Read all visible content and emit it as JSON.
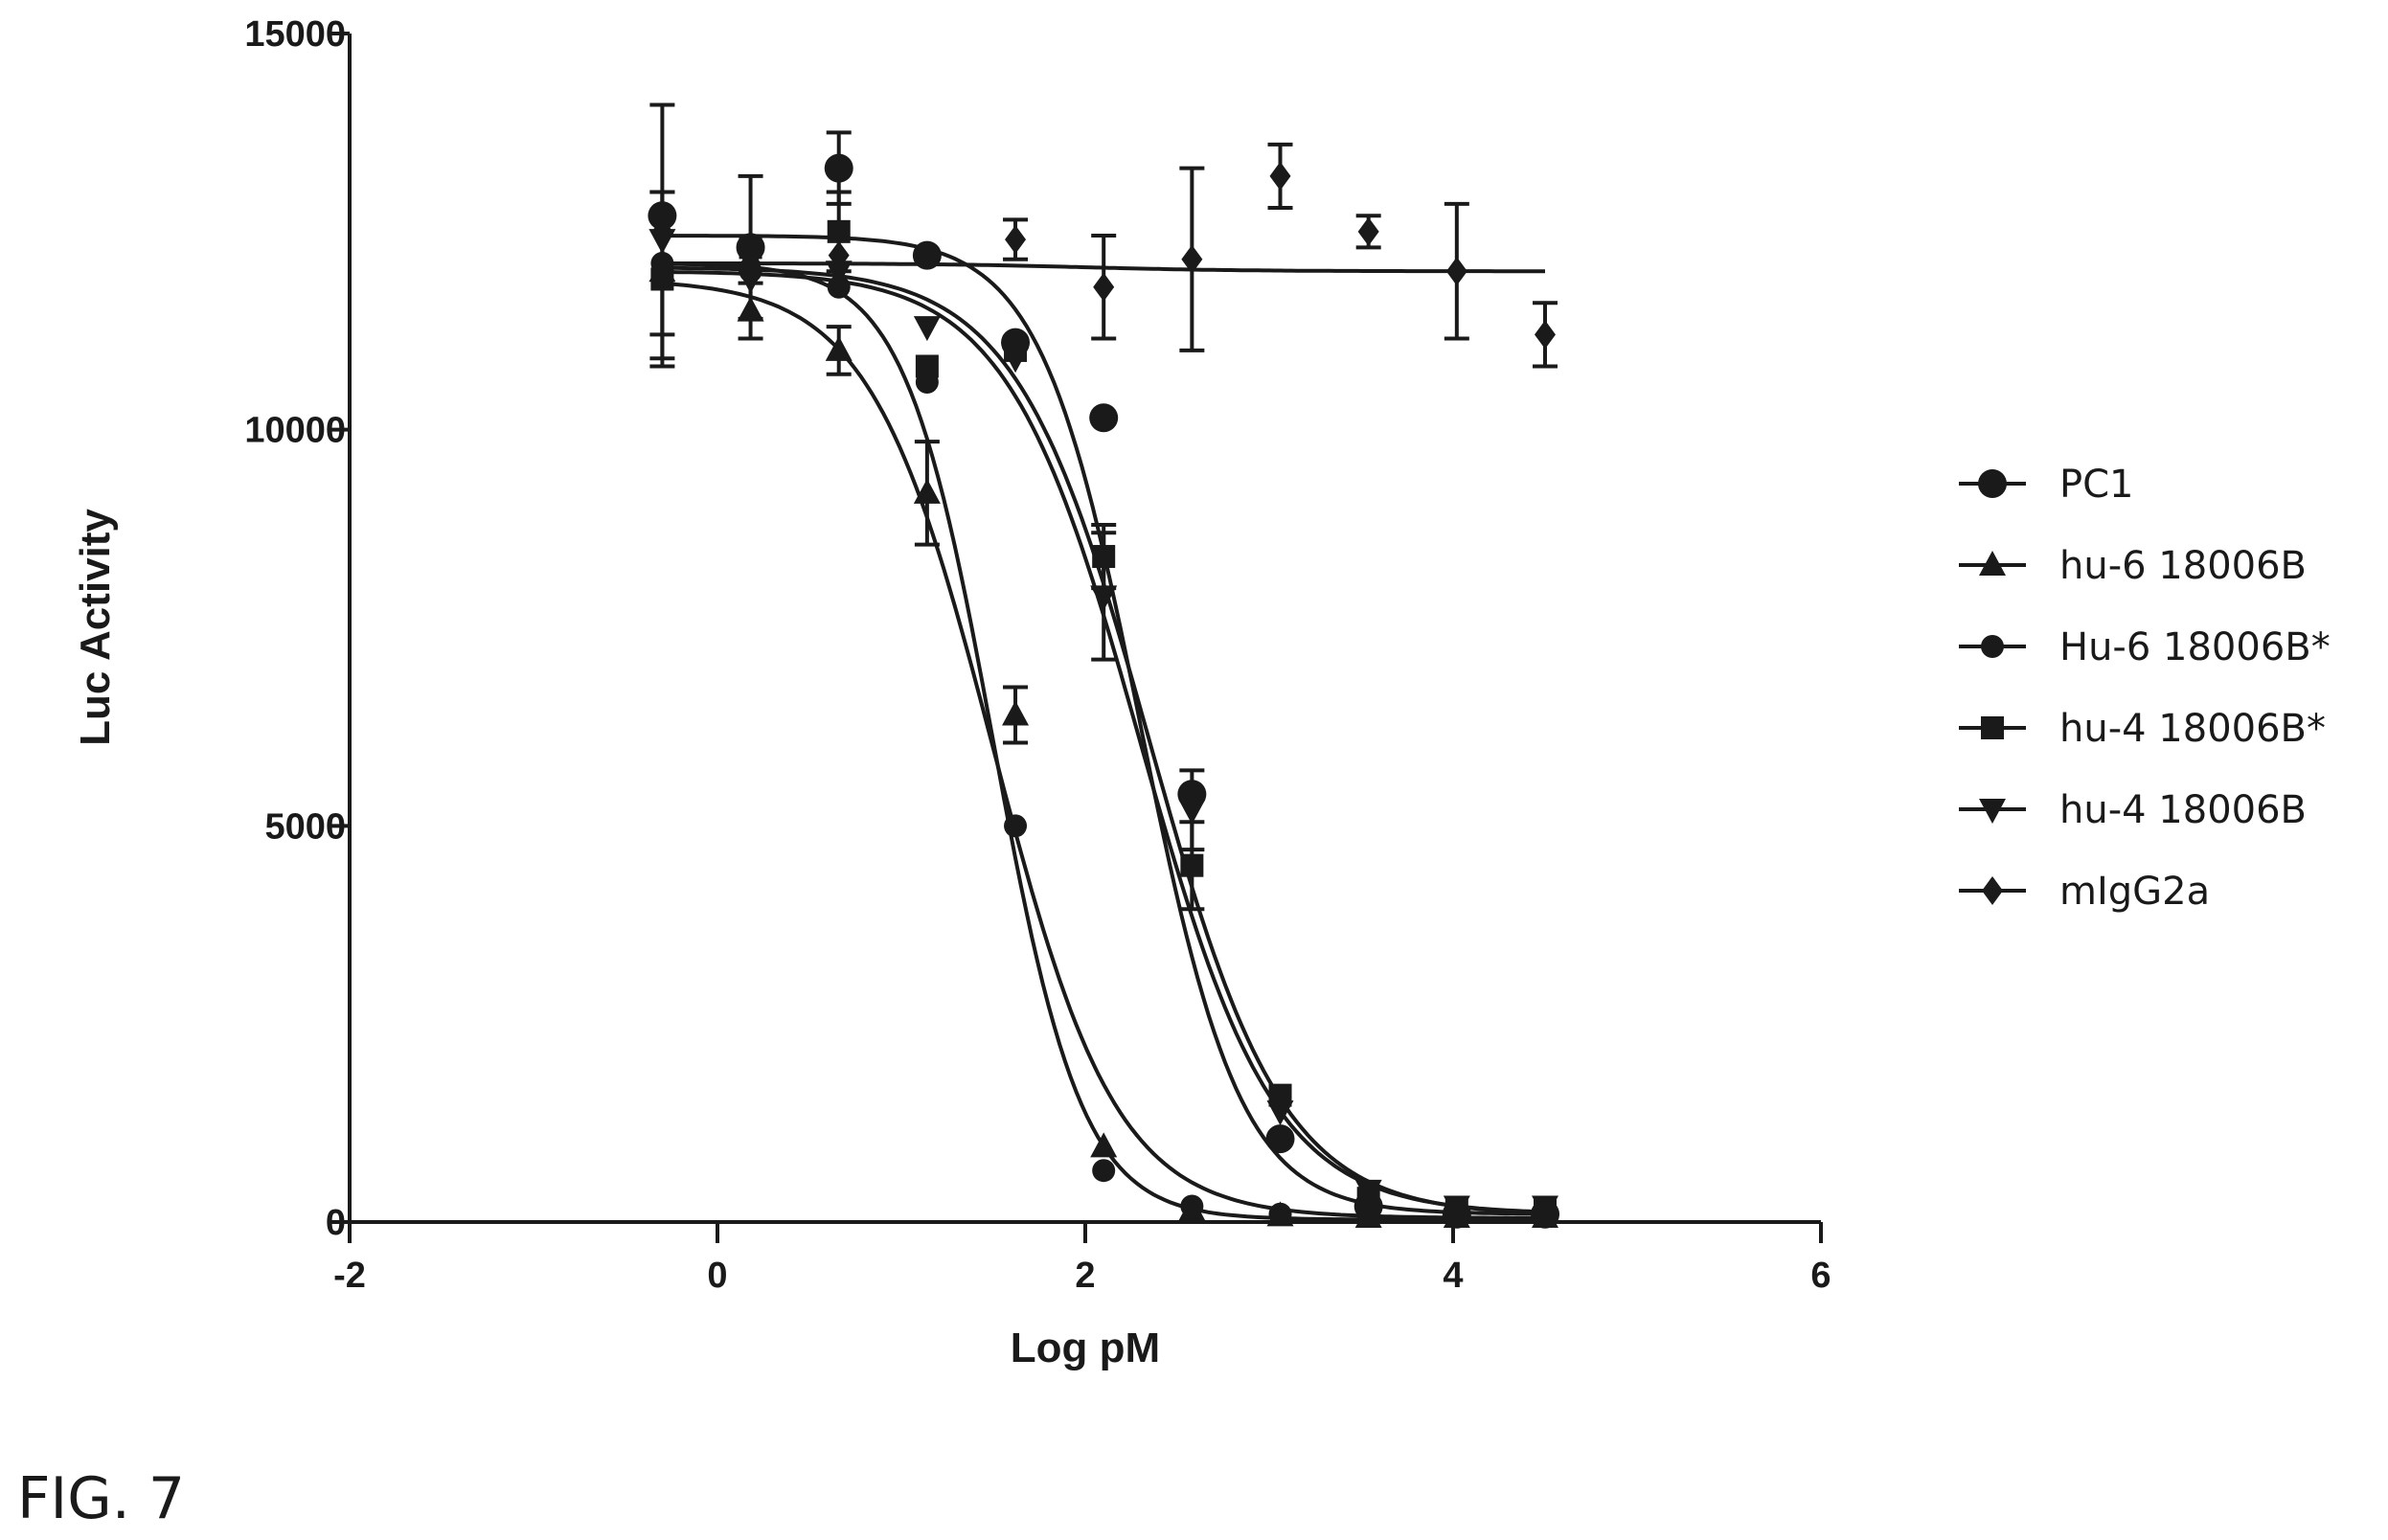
{
  "figure_label": "FIG. 7",
  "chart_data": {
    "type": "scatter",
    "xlabel": "Log pM",
    "ylabel": "Luc Activity",
    "xlim": [
      -2,
      6
    ],
    "ylim": [
      0,
      15000
    ],
    "x_ticks": [
      -2,
      0,
      2,
      4,
      6
    ],
    "y_ticks": [
      0,
      5000,
      10000,
      15000
    ],
    "x_tick_labels": [
      "-2",
      "0",
      "2",
      "4",
      "6"
    ],
    "y_tick_labels": [
      "0",
      "5000",
      "10000",
      "15000"
    ],
    "grid": false,
    "legend_position": "right",
    "color": "#1a1a1a",
    "fit": "four-parameter logistic",
    "series": [
      {
        "name": "PC1",
        "marker": "circle",
        "fit": {
          "bottom": 100,
          "top": 12450,
          "log_ec50": 2.3,
          "hill": -1.6
        },
        "points": [
          {
            "x": -0.3,
            "y": 12700
          },
          {
            "x": 0.18,
            "y": 12300
          },
          {
            "x": 0.66,
            "y": 13300,
            "err": 450
          },
          {
            "x": 1.14,
            "y": 12200
          },
          {
            "x": 1.62,
            "y": 11100
          },
          {
            "x": 2.1,
            "y": 10150
          },
          {
            "x": 2.58,
            "y": 5400
          },
          {
            "x": 3.06,
            "y": 1050
          },
          {
            "x": 3.54,
            "y": 200
          },
          {
            "x": 4.02,
            "y": 100
          },
          {
            "x": 4.5,
            "y": 100
          }
        ]
      },
      {
        "name": "hu-6 18006B",
        "marker": "triangle-up",
        "fit": {
          "bottom": 50,
          "top": 11900,
          "log_ec50": 1.5,
          "hill": -1.3
        },
        "points": [
          {
            "x": -0.3,
            "y": 12000
          },
          {
            "x": 0.18,
            "y": 11500,
            "err": 350
          },
          {
            "x": 0.66,
            "y": 11000,
            "err": 300
          },
          {
            "x": 1.14,
            "y": 9200,
            "err": 650
          },
          {
            "x": 1.62,
            "y": 6400,
            "err": 350
          },
          {
            "x": 2.1,
            "y": 950
          },
          {
            "x": 2.58,
            "y": 150
          },
          {
            "x": 3.06,
            "y": 80
          },
          {
            "x": 3.54,
            "y": 60
          },
          {
            "x": 4.02,
            "y": 60
          },
          {
            "x": 4.5,
            "y": 60
          }
        ]
      },
      {
        "name": "Hu-6 18006B*",
        "marker": "circle-small",
        "fit": {
          "bottom": 30,
          "top": 12100,
          "log_ec50": 1.5,
          "hill": -1.8
        },
        "points": [
          {
            "x": -0.3,
            "y": 12100,
            "err": 900
          },
          {
            "x": 0.18,
            "y": 12000
          },
          {
            "x": 0.66,
            "y": 11800
          },
          {
            "x": 1.14,
            "y": 10600
          },
          {
            "x": 1.62,
            "y": 5000
          },
          {
            "x": 2.1,
            "y": 650
          },
          {
            "x": 2.58,
            "y": 200
          },
          {
            "x": 3.06,
            "y": 100
          },
          {
            "x": 3.54,
            "y": 80
          },
          {
            "x": 4.02,
            "y": 70
          },
          {
            "x": 4.5,
            "y": 70
          }
        ]
      },
      {
        "name": "hu-4 18006B*",
        "marker": "square",
        "fit": {
          "bottom": 80,
          "top": 12050,
          "log_ec50": 2.35,
          "hill": -1.2
        },
        "points": [
          {
            "x": -0.3,
            "y": 11900,
            "err": 1100
          },
          {
            "x": 0.18,
            "y": 12300,
            "err": 900
          },
          {
            "x": 0.66,
            "y": 12500,
            "err": 500
          },
          {
            "x": 1.14,
            "y": 10800
          },
          {
            "x": 1.62,
            "y": 11000
          },
          {
            "x": 2.1,
            "y": 8400,
            "err": 400
          },
          {
            "x": 2.58,
            "y": 4500,
            "err": 550
          },
          {
            "x": 3.06,
            "y": 1600
          },
          {
            "x": 3.54,
            "y": 300
          },
          {
            "x": 4.02,
            "y": 150
          },
          {
            "x": 4.5,
            "y": 150
          }
        ]
      },
      {
        "name": "hu-4 18006B",
        "marker": "triangle-down",
        "fit": {
          "bottom": 100,
          "top": 12000,
          "log_ec50": 2.3,
          "hill": -1.2
        },
        "points": [
          {
            "x": -0.3,
            "y": 12400
          },
          {
            "x": 0.18,
            "y": 11900
          },
          {
            "x": 0.66,
            "y": 12000
          },
          {
            "x": 1.14,
            "y": 11300
          },
          {
            "x": 1.62,
            "y": 10900
          },
          {
            "x": 2.1,
            "y": 7900,
            "err": 800
          },
          {
            "x": 2.58,
            "y": 5200,
            "err": 500
          },
          {
            "x": 3.06,
            "y": 1400
          },
          {
            "x": 3.54,
            "y": 400
          },
          {
            "x": 4.02,
            "y": 200
          },
          {
            "x": 4.5,
            "y": 200
          }
        ]
      },
      {
        "name": "mIgG2a",
        "marker": "diamond",
        "fit": {
          "bottom": 12000,
          "top": 12100,
          "log_ec50": 2,
          "hill": -1
        },
        "points": [
          {
            "x": -0.3,
            "y": 12500,
            "err": 1600
          },
          {
            "x": 0.18,
            "y": 12100
          },
          {
            "x": 0.66,
            "y": 12200
          },
          {
            "x": 1.62,
            "y": 12400,
            "err": 250
          },
          {
            "x": 2.1,
            "y": 11800,
            "err": 650
          },
          {
            "x": 2.58,
            "y": 12150,
            "err": 1150
          },
          {
            "x": 3.06,
            "y": 13200,
            "err": 400
          },
          {
            "x": 3.54,
            "y": 12500,
            "err": 200
          },
          {
            "x": 4.02,
            "y": 12000,
            "err": 850
          },
          {
            "x": 4.5,
            "y": 11200,
            "err": 400
          }
        ]
      }
    ]
  }
}
